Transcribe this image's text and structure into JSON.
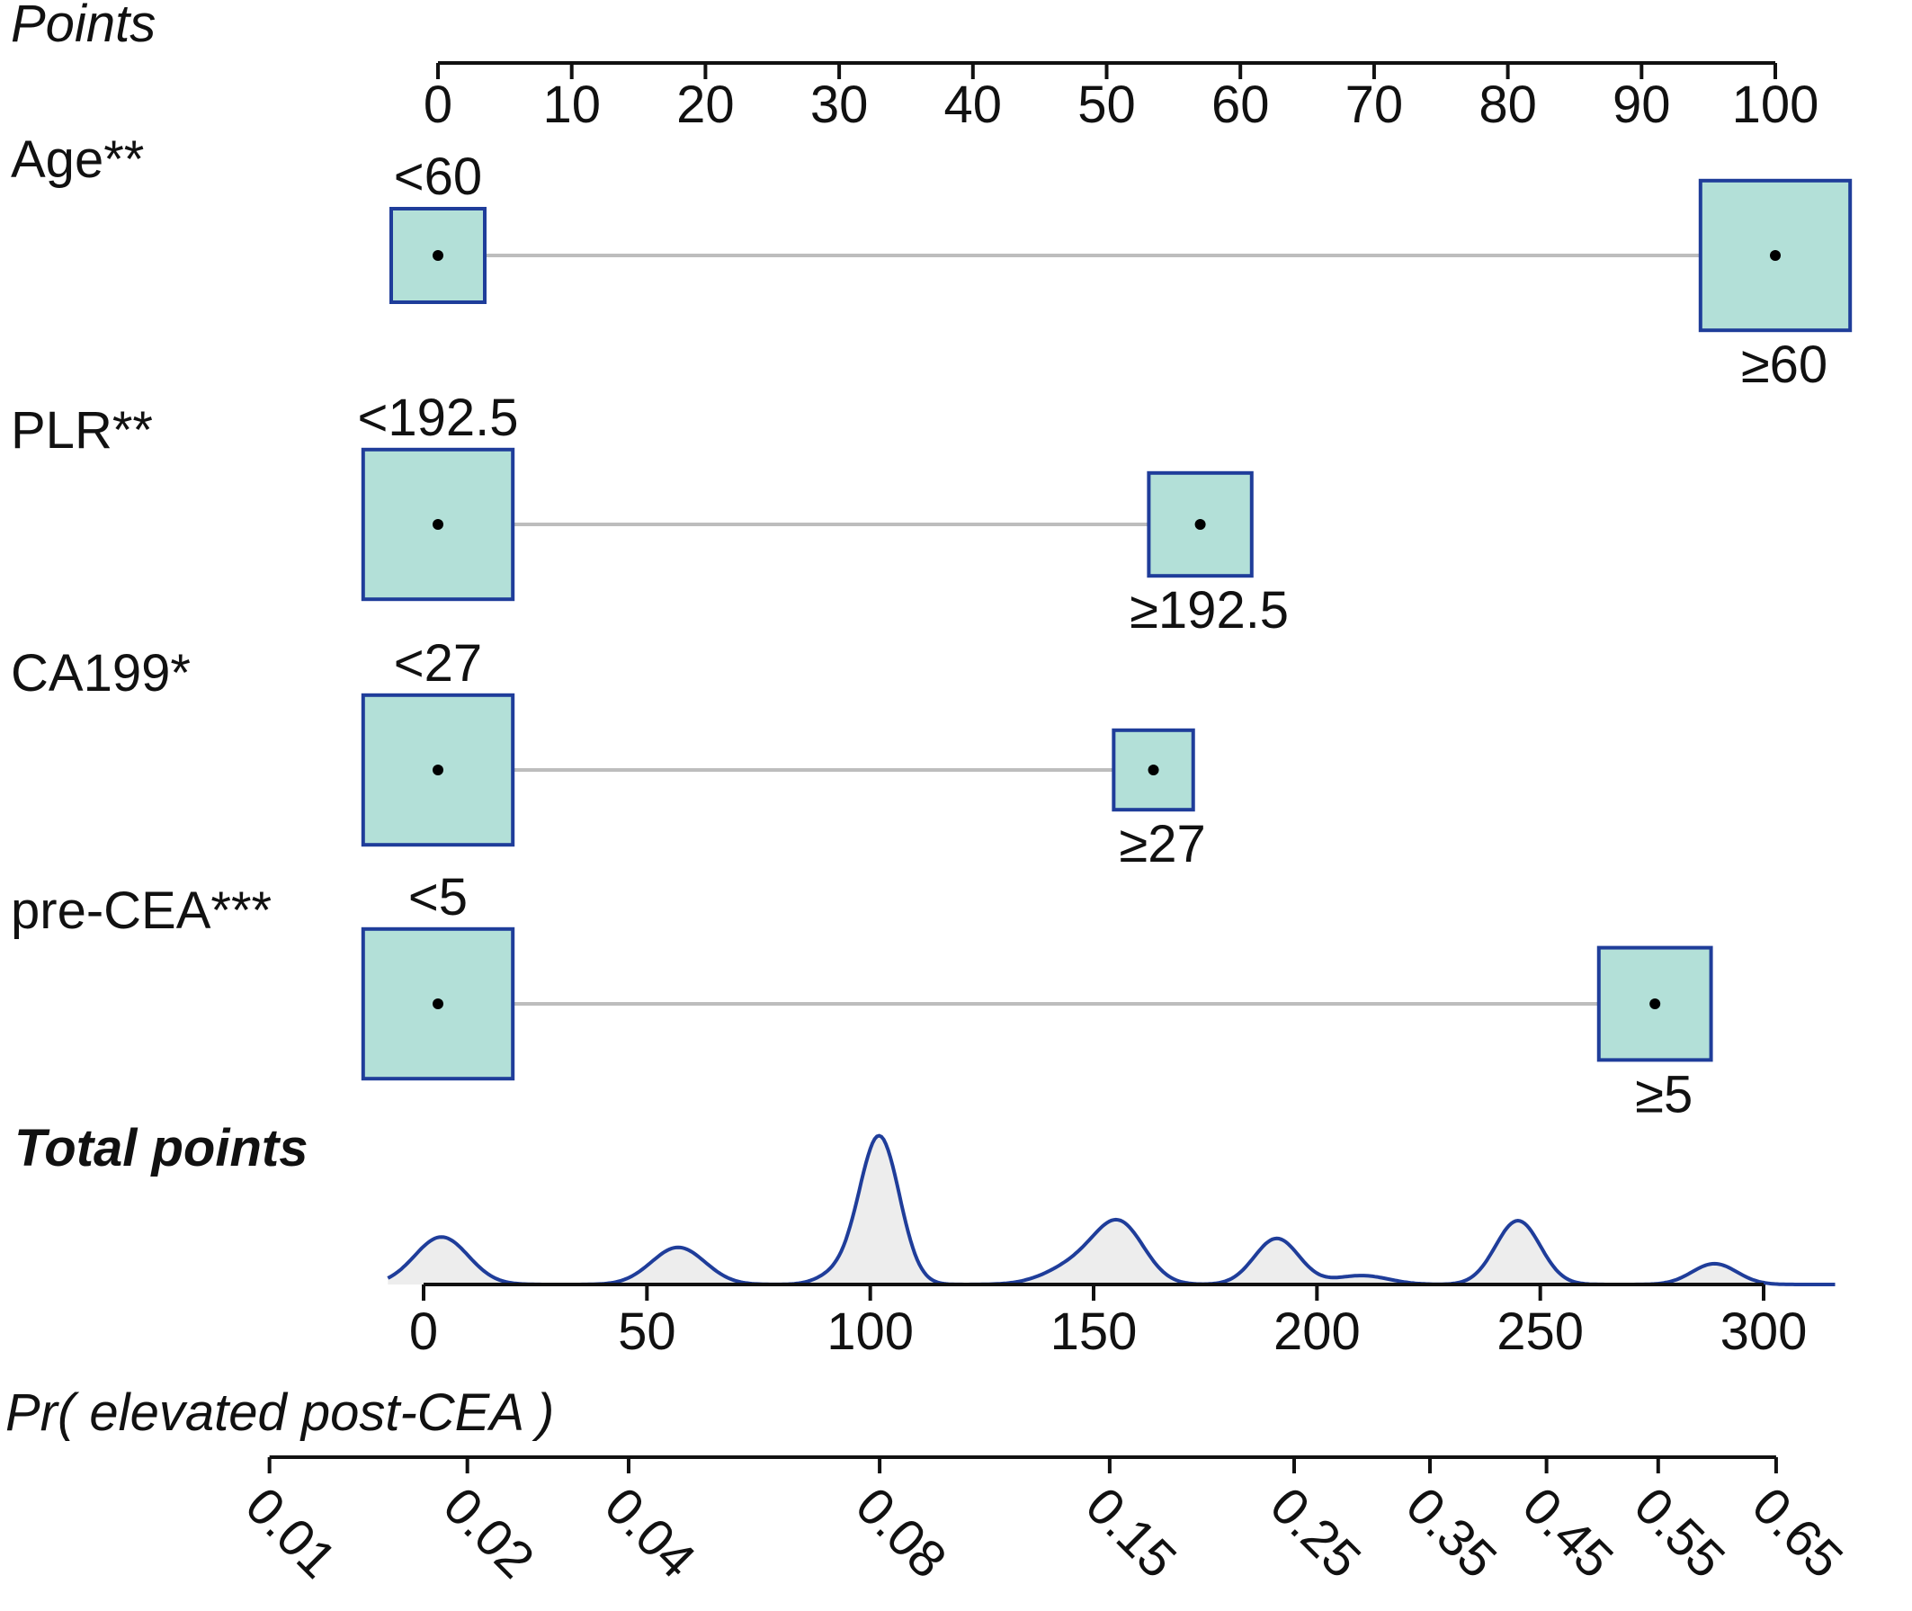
{
  "chart_data": {
    "type": "nomogram",
    "points_axis": {
      "label": "Points",
      "range": [
        0,
        100
      ],
      "ticks": [
        0,
        10,
        20,
        30,
        40,
        50,
        60,
        70,
        80,
        90,
        100
      ],
      "tick_labels": [
        "0",
        "10",
        "20",
        "30",
        "40",
        "50",
        "60",
        "70",
        "80",
        "90",
        "100"
      ]
    },
    "variables": [
      {
        "name": "Age**",
        "levels": [
          {
            "label": "<60",
            "points": 0,
            "size": 1.0,
            "label_side": "above"
          },
          {
            "label": "≥60",
            "points": 100,
            "size": 1.6,
            "label_side": "below"
          }
        ]
      },
      {
        "name": "PLR**",
        "levels": [
          {
            "label": "<192.5",
            "points": 0,
            "size": 1.6,
            "label_side": "above"
          },
          {
            "label": "≥192.5",
            "points": 57,
            "size": 1.1,
            "label_side": "below"
          }
        ]
      },
      {
        "name": "CA199*",
        "levels": [
          {
            "label": "<27",
            "points": 0,
            "size": 1.6,
            "label_side": "above"
          },
          {
            "label": "≥27",
            "points": 53.5,
            "size": 0.85,
            "label_side": "below"
          }
        ]
      },
      {
        "name": "pre-CEA***",
        "levels": [
          {
            "label": "<5",
            "points": 0,
            "size": 1.6,
            "label_side": "above"
          },
          {
            "label": "≥5",
            "points": 91,
            "size": 1.2,
            "label_side": "below"
          }
        ]
      }
    ],
    "total_points": {
      "label": "Total points",
      "range": [
        0,
        300
      ],
      "ticks": [
        0,
        50,
        100,
        150,
        200,
        250,
        300
      ],
      "tick_labels": [
        "0",
        "50",
        "100",
        "150",
        "200",
        "250",
        "300"
      ],
      "density": [
        {
          "center": 4,
          "height": 0.32,
          "width": 6
        },
        {
          "center": 57,
          "height": 0.25,
          "width": 6
        },
        {
          "center": 92,
          "height": 0.06,
          "width": 4
        },
        {
          "center": 102,
          "height": 1.0,
          "width": 4.5
        },
        {
          "center": 147,
          "height": 0.14,
          "width": 7
        },
        {
          "center": 156,
          "height": 0.37,
          "width": 5.5
        },
        {
          "center": 191,
          "height": 0.31,
          "width": 5
        },
        {
          "center": 210,
          "height": 0.06,
          "width": 6
        },
        {
          "center": 245,
          "height": 0.43,
          "width": 5
        },
        {
          "center": 289,
          "height": 0.14,
          "width": 5
        }
      ]
    },
    "probability_axis": {
      "label": "Pr( elevated post-CEA )",
      "ticks": [
        0.01,
        0.02,
        0.04,
        0.08,
        0.15,
        0.25,
        0.35,
        0.45,
        0.55,
        0.65
      ],
      "tick_labels": [
        "0.01",
        "0.02",
        "0.04",
        "0.08",
        "0.15",
        "0.25",
        "0.35",
        "0.45",
        "0.55",
        "0.65"
      ],
      "total_points_at_ticks": [
        -34.5,
        9.8,
        45.9,
        102.1,
        153.6,
        194.9,
        225.3,
        251.4,
        276.4,
        302.8
      ]
    },
    "colors": {
      "box_fill": "#b3e0d8",
      "box_stroke": "#1f3d9a",
      "connector": "#bdbdbd",
      "density_fill": "#ededed",
      "density_stroke": "#1f3d9a",
      "axis": "#111111"
    }
  }
}
